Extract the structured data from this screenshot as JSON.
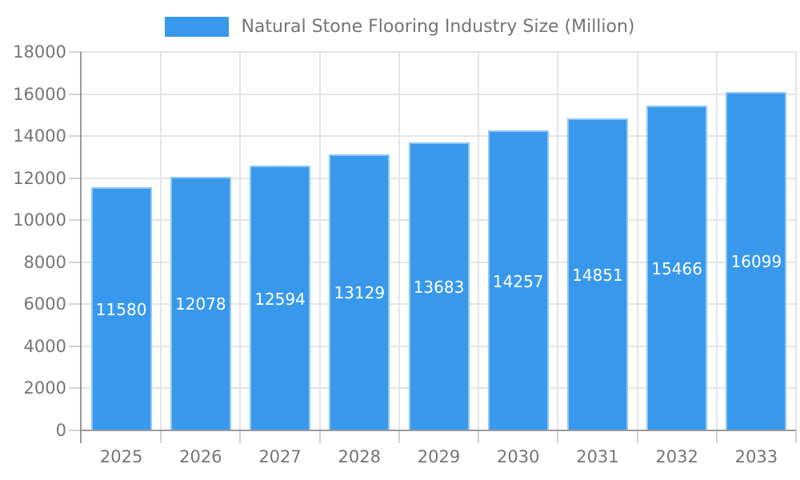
{
  "chart_data": {
    "type": "bar",
    "title": "Natural Stone Flooring Industry Size (Million)",
    "categories": [
      "2025",
      "2026",
      "2027",
      "2028",
      "2029",
      "2030",
      "2031",
      "2032",
      "2033"
    ],
    "values": [
      11580,
      12078,
      12594,
      13129,
      13683,
      14257,
      14851,
      15466,
      16099
    ],
    "xlabel": "",
    "ylabel": "",
    "ylim": [
      0,
      18000
    ],
    "ytick_step": 2000,
    "y_tick_labels": [
      "0",
      "2000",
      "4000",
      "6000",
      "8000",
      "10000",
      "12000",
      "14000",
      "16000",
      "18000"
    ],
    "grid": true,
    "legend_position": "top",
    "bar_labels_inside": true,
    "colors": {
      "bar": "#3899ec",
      "bar_label": "#ffffff",
      "axis_text": "#757575",
      "grid_line": "#e5e5e5",
      "tick_line": "#d2d2d2",
      "axis_line": "#9a9a9a",
      "background": "#ffffff"
    }
  }
}
